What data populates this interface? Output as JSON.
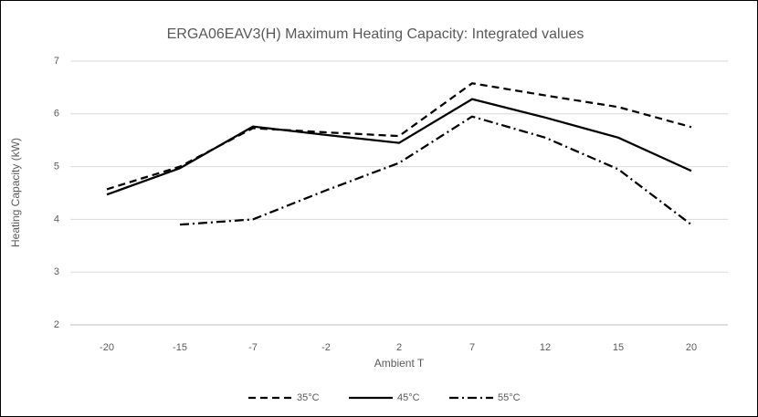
{
  "chart_data": {
    "type": "line",
    "title": "ERGA06EAV3(H) Maximum Heating Capacity: Integrated values",
    "x_label": "Ambient T",
    "y_label": "Heating Capacity (kW)",
    "categories": [
      "-20",
      "-15",
      "-7",
      "-2",
      "2",
      "7",
      "12",
      "15",
      "20"
    ],
    "series": [
      {
        "name": "35°C",
        "color": "#000000",
        "dash": "dashed",
        "values": [
          4.57,
          5.0,
          5.73,
          5.65,
          5.58,
          6.58,
          6.35,
          6.13,
          5.75
        ]
      },
      {
        "name": "45°C",
        "color": "#000000",
        "dash": "solid",
        "values": [
          4.47,
          4.97,
          5.76,
          5.6,
          5.45,
          6.28,
          5.93,
          5.55,
          4.92
        ]
      },
      {
        "name": "55°C",
        "color": "#000000",
        "dash": "dash-dot",
        "values": [
          null,
          3.9,
          4.0,
          4.55,
          5.07,
          5.95,
          5.55,
          4.95,
          3.9
        ]
      }
    ],
    "ylim": [
      2,
      7
    ],
    "yticks": [
      2,
      3,
      4,
      5,
      6,
      7
    ],
    "grid": true,
    "legend": "bottom"
  }
}
